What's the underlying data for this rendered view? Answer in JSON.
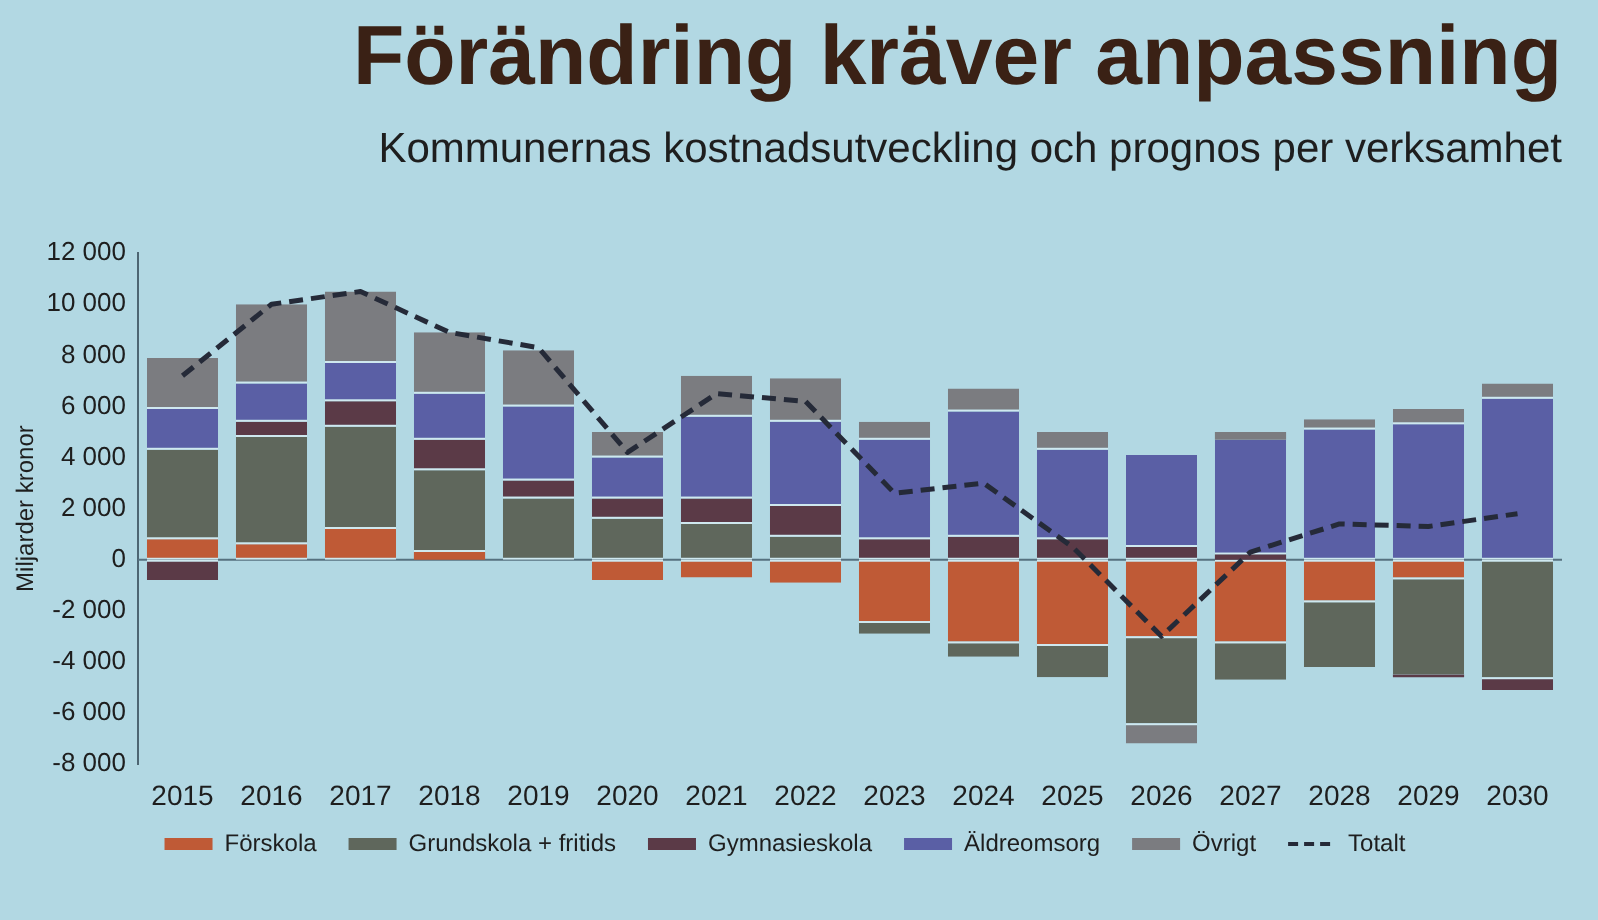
{
  "chart_data": {
    "type": "bar",
    "title": "Förändring kräver anpassning",
    "subtitle": "Kommunernas kostnadsutveckling och prognos per verksamhet",
    "ylabel": "Miljarder kronor",
    "categories": [
      "2015",
      "2016",
      "2017",
      "2018",
      "2019",
      "2020",
      "2021",
      "2022",
      "2023",
      "2024",
      "2025",
      "2026",
      "2027",
      "2028",
      "2029",
      "2030"
    ],
    "stacked": true,
    "series": [
      {
        "name": "Förskola",
        "color": "#bf5a36",
        "values": [
          800,
          600,
          1200,
          300,
          null,
          -800,
          -700,
          -900,
          -2400,
          -3200,
          -3300,
          -3000,
          -3200,
          -1600,
          -700,
          null
        ]
      },
      {
        "name": "Grundskola + fritids",
        "color": "#5f675c",
        "values": [
          3500,
          4200,
          4000,
          3200,
          2400,
          1600,
          1400,
          900,
          -500,
          -600,
          -1300,
          -3400,
          -1500,
          -2600,
          -3800,
          -4600
        ]
      },
      {
        "name": "Gymnasieskola",
        "color": "#5b3a47",
        "values": [
          -800,
          600,
          1000,
          1200,
          700,
          800,
          1000,
          1200,
          800,
          900,
          800,
          500,
          200,
          null,
          -100,
          -500
        ]
      },
      {
        "name": "Äldreomsorg",
        "color": "#5a5fa5",
        "values": [
          1600,
          1500,
          1500,
          1800,
          2900,
          1600,
          3200,
          3300,
          3900,
          4900,
          3500,
          3600,
          4500,
          5100,
          5300,
          6300
        ]
      },
      {
        "name": "Övrigt",
        "color": "#7b7c80",
        "values": [
          2000,
          3100,
          2800,
          2400,
          2200,
          1000,
          1600,
          1700,
          700,
          900,
          700,
          -800,
          300,
          400,
          600,
          600
        ]
      },
      {
        "name": "Totalt",
        "type": "line",
        "color": "#252a38",
        "line_style": "dashed",
        "marker": "none",
        "values": [
          7200,
          10000,
          10500,
          8900,
          8300,
          4200,
          6500,
          6200,
          2600,
          3000,
          500,
          -3000,
          300,
          1400,
          1300,
          1800
        ]
      }
    ],
    "ylim": [
      -8000,
      12000
    ],
    "yticks": [
      {
        "value": -8000,
        "label": "-8 000"
      },
      {
        "value": -6000,
        "label": "-6 000"
      },
      {
        "value": -4000,
        "label": "-4 000"
      },
      {
        "value": -2000,
        "label": "-2 000"
      },
      0,
      {
        "value": 2000,
        "label": "2 000"
      },
      {
        "value": 4000,
        "label": "4 000"
      },
      {
        "value": 6000,
        "label": "6 000"
      },
      {
        "value": 8000,
        "label": "8 000"
      },
      {
        "value": 10000,
        "label": "10 000"
      },
      {
        "value": 12000,
        "label": "12 000"
      }
    ],
    "ref_lines": [
      {
        "axis": "y",
        "value": 0,
        "color": "#56717f"
      }
    ],
    "grid": false,
    "legend": "bottom"
  }
}
